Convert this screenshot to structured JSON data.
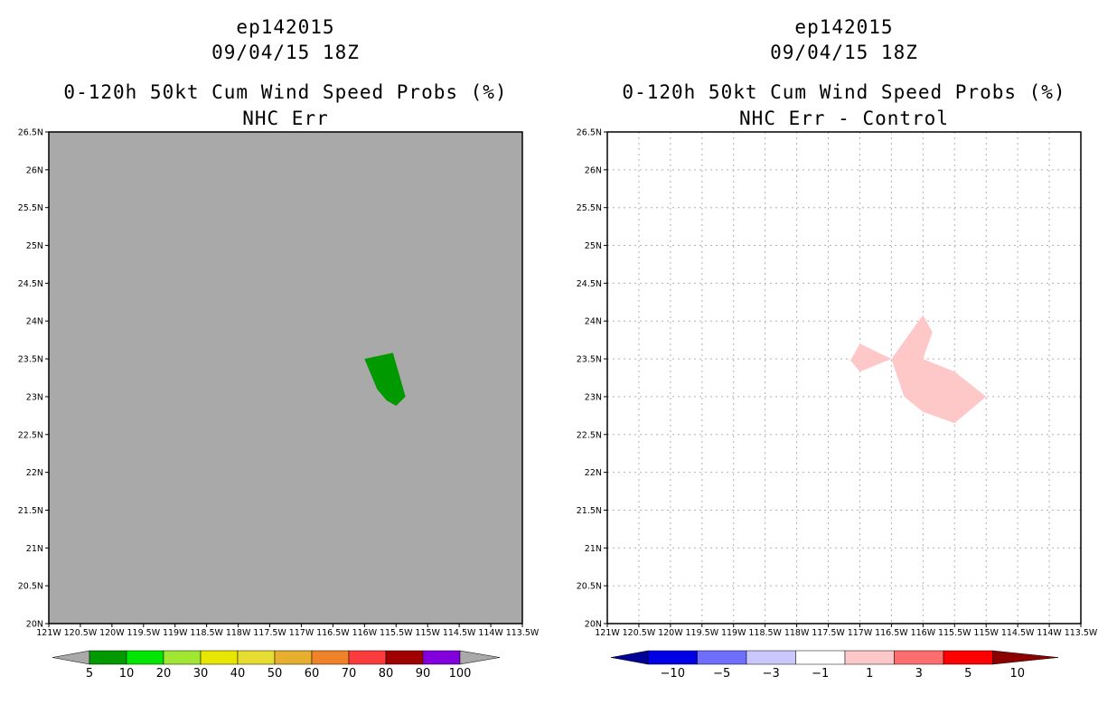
{
  "chart_data": [
    {
      "type": "map-contour",
      "title": "ep142015",
      "subtitle": "09/04/15 18Z",
      "product": "0-120h 50kt Cum Wind Speed Probs (%)",
      "panel": "NHC Err",
      "xlim": [
        -121,
        -113.5
      ],
      "ylim": [
        20,
        26.5
      ],
      "background_color": "#a9a9a9",
      "x_ticks": [
        "121W",
        "120.5W",
        "120W",
        "119.5W",
        "119W",
        "118.5W",
        "118W",
        "117.5W",
        "117W",
        "116.5W",
        "116W",
        "115.5W",
        "115W",
        "114.5W",
        "114W",
        "113.5W"
      ],
      "y_ticks": [
        "20N",
        "20.5N",
        "21N",
        "21.5N",
        "22N",
        "22.5N",
        "23N",
        "23.5N",
        "24N",
        "24.5N",
        "25N",
        "25.5N",
        "26N",
        "26.5N"
      ],
      "regions": [
        {
          "category": "5-10",
          "color": "#009a00",
          "lon": [
            -116.0,
            -115.55,
            -115.35,
            -115.5,
            -115.65,
            -115.8
          ],
          "lat": [
            23.5,
            23.58,
            23.0,
            22.88,
            22.95,
            23.1
          ]
        }
      ],
      "colorbar": {
        "labels": [
          "5",
          "10",
          "20",
          "30",
          "40",
          "50",
          "60",
          "70",
          "80",
          "90",
          "100"
        ],
        "colors": [
          "#009a00",
          "#00e600",
          "#a0e632",
          "#e6e600",
          "#e6dc32",
          "#e6af2d",
          "#f08228",
          "#fa3c3c",
          "#a00000",
          "#8200dc"
        ],
        "end_color": "#a9a9a9"
      }
    },
    {
      "type": "map-contour",
      "title": "ep142015",
      "subtitle": "09/04/15 18Z",
      "product": "0-120h 50kt Cum Wind Speed Probs (%)",
      "panel": "NHC Err - Control",
      "xlim": [
        -121,
        -113.5
      ],
      "ylim": [
        20,
        26.5
      ],
      "background_color": "#ffffff",
      "grid": true,
      "x_ticks": [
        "121W",
        "120.5W",
        "120W",
        "119.5W",
        "119W",
        "118.5W",
        "118W",
        "117.5W",
        "117W",
        "116.5W",
        "116W",
        "115.5W",
        "115W",
        "114.5W",
        "114W",
        "113.5W"
      ],
      "y_ticks": [
        "20N",
        "20.5N",
        "21N",
        "21.5N",
        "22N",
        "22.5N",
        "23N",
        "23.5N",
        "24N",
        "24.5N",
        "25N",
        "25.5N",
        "26N",
        "26.5N"
      ],
      "regions": [
        {
          "category": "1-3",
          "color": "#ffc8c8",
          "lon": [
            -117.15,
            -117.0,
            -116.5,
            -117.0
          ],
          "lat": [
            23.48,
            23.7,
            23.5,
            23.33
          ]
        },
        {
          "category": "1-3",
          "color": "#ffc8c8",
          "lon": [
            -116.5,
            -116.0,
            -115.85,
            -116.0,
            -115.5,
            -115.0,
            -115.5,
            -116.0,
            -116.3
          ],
          "lat": [
            23.5,
            24.08,
            23.85,
            23.5,
            23.33,
            23.0,
            22.65,
            22.8,
            23.0
          ]
        }
      ],
      "colorbar": {
        "labels": [
          "-10",
          "-5",
          "-3",
          "-1",
          "1",
          "3",
          "5",
          "10"
        ],
        "colors": [
          "#0000e6",
          "#6e6eff",
          "#c8c8ff",
          "#ffffff",
          "#ffc8c8",
          "#ff6e6e",
          "#ff0000"
        ],
        "low_end_color": "#000096",
        "high_end_color": "#8c0000"
      }
    }
  ]
}
